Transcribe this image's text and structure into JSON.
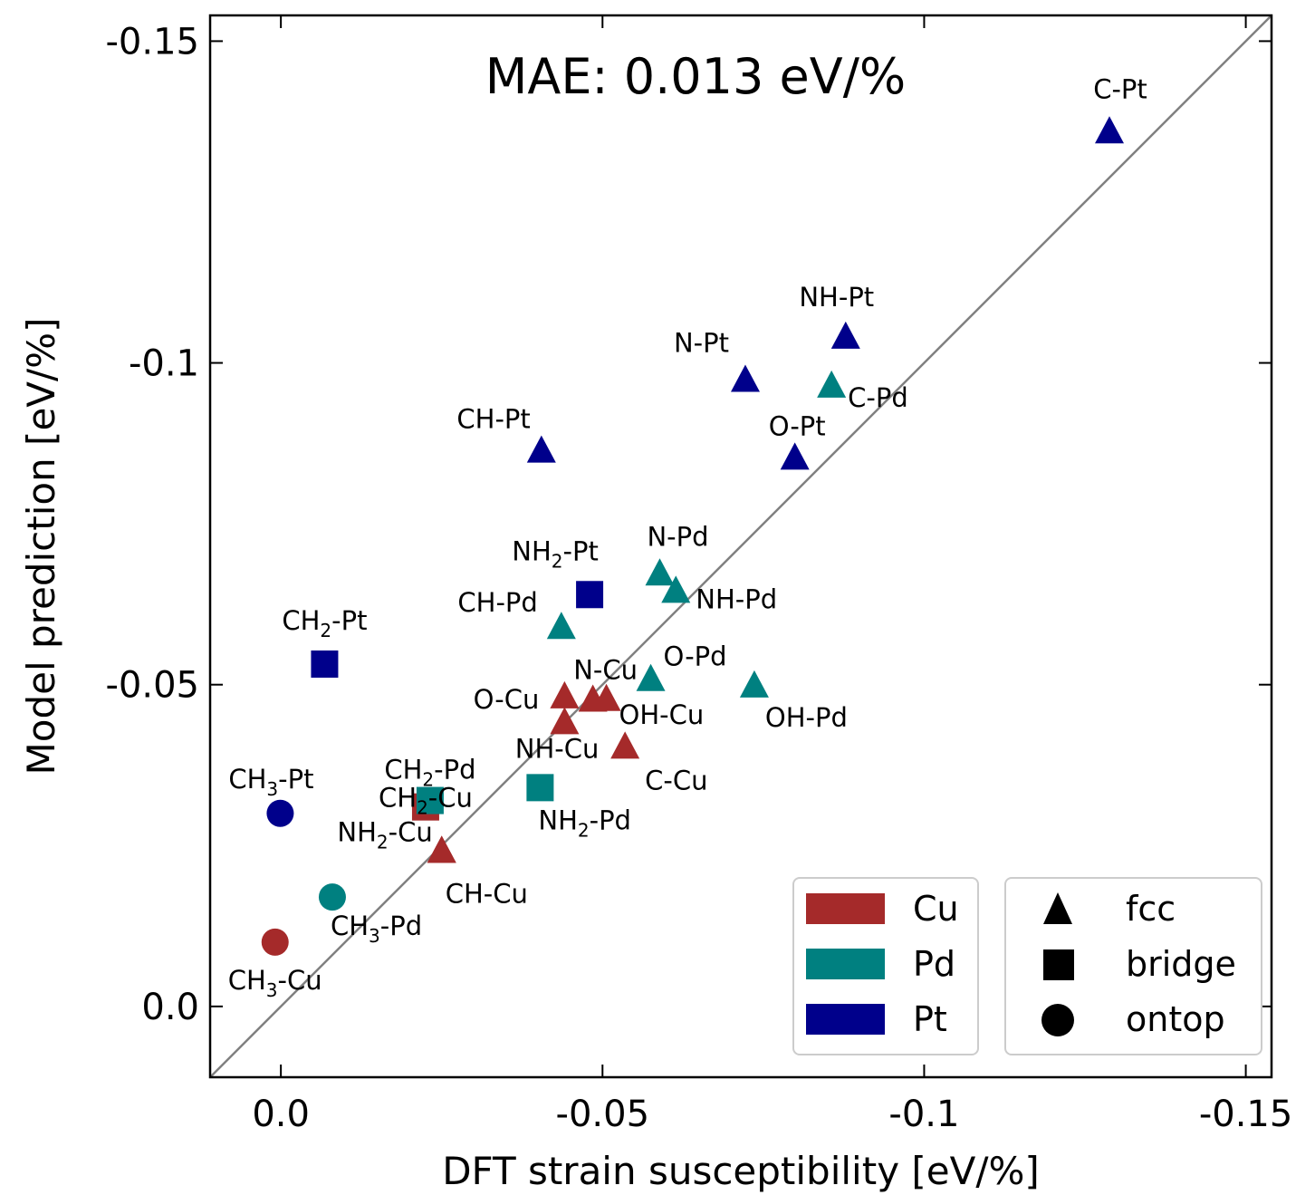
{
  "chart_data": {
    "type": "scatter",
    "xlabel": "DFT strain susceptibility [eV/%]",
    "ylabel": "Model prediction [eV/%]",
    "annotation": "MAE: 0.013 eV/%",
    "xlim": [
      0.011,
      -0.154
    ],
    "ylim": [
      0.011,
      -0.154
    ],
    "x_ticks": [
      {
        "value": 0.0,
        "label": "0.0"
      },
      {
        "value": -0.05,
        "label": "-0.05"
      },
      {
        "value": -0.1,
        "label": "-0.1"
      },
      {
        "value": -0.15,
        "label": "-0.15"
      }
    ],
    "y_ticks": [
      {
        "value": 0.0,
        "label": "0.0"
      },
      {
        "value": -0.05,
        "label": "-0.05"
      },
      {
        "value": -0.1,
        "label": "-0.1"
      },
      {
        "value": -0.15,
        "label": "-0.15"
      }
    ],
    "parity_line": true,
    "grid": false,
    "colors": {
      "Cu": "#a52a2a",
      "Pd": "#008080",
      "Pt": "#00008b",
      "parity": "#808080"
    },
    "legend_metals": [
      "Cu",
      "Pd",
      "Pt"
    ],
    "legend_sites": [
      {
        "name": "fcc",
        "marker": "triangle"
      },
      {
        "name": "bridge",
        "marker": "square"
      },
      {
        "name": "ontop",
        "marker": "circle"
      }
    ],
    "points": [
      {
        "ads": "C",
        "sub": "",
        "metal": "Pt",
        "site": "fcc",
        "x": -0.1288,
        "y": -0.1358,
        "text": "C-Pt",
        "anchor": "middle",
        "dx": 12,
        "dy": -38
      },
      {
        "ads": "NH",
        "sub": "",
        "metal": "Pt",
        "site": "fcc",
        "x": -0.0878,
        "y": -0.1039,
        "text": "NH-Pt",
        "anchor": "middle",
        "dx": -10,
        "dy": -35
      },
      {
        "ads": "N",
        "sub": "",
        "metal": "Pt",
        "site": "fcc",
        "x": -0.0722,
        "y": -0.0972,
        "text": "N-Pt",
        "anchor": "end",
        "dx": -18,
        "dy": -32
      },
      {
        "ads": "C",
        "sub": "",
        "metal": "Pd",
        "site": "fcc",
        "x": -0.0856,
        "y": -0.0963,
        "text": "C-Pd",
        "anchor": "start",
        "dx": 18,
        "dy": 22
      },
      {
        "ads": "O",
        "sub": "",
        "metal": "Pt",
        "site": "fcc",
        "x": -0.0799,
        "y": -0.0851,
        "text": "O-Pt",
        "anchor": "end",
        "dx": 34,
        "dy": -26
      },
      {
        "ads": "CH",
        "sub": "",
        "metal": "Pt",
        "site": "fcc",
        "x": -0.0405,
        "y": -0.0862,
        "text": "CH-Pt",
        "anchor": "end",
        "dx": -12,
        "dy": -26
      },
      {
        "ads": "N",
        "sub": "",
        "metal": "Pd",
        "site": "fcc",
        "x": -0.0589,
        "y": -0.0671,
        "text": "N-Pd",
        "anchor": "middle",
        "dx": 20,
        "dy": -32
      },
      {
        "ads": "NH",
        "sub": "",
        "metal": "Pd",
        "site": "fcc",
        "x": -0.0614,
        "y": -0.0644,
        "text": "NH-Pd",
        "anchor": "start",
        "dx": 22,
        "dy": 18
      },
      {
        "ads": "NH",
        "sub": "2",
        "metal": "Pt",
        "site": "bridge",
        "x": -0.048,
        "y": -0.064,
        "text": "NH-Pt",
        "anchor": "middle",
        "dx": -38,
        "dy": -38
      },
      {
        "ads": "CH",
        "sub": "",
        "metal": "Pd",
        "site": "fcc",
        "x": -0.0436,
        "y": -0.0588,
        "text": "CH-Pd",
        "anchor": "end",
        "dx": -26,
        "dy": -18
      },
      {
        "ads": "CH",
        "sub": "2",
        "metal": "Pt",
        "site": "bridge",
        "x": -0.0068,
        "y": -0.0532,
        "text": "CH-Pt",
        "anchor": "middle",
        "dx": 0,
        "dy": -38
      },
      {
        "ads": "O",
        "sub": "",
        "metal": "Pd",
        "site": "fcc",
        "x": -0.0575,
        "y": -0.0507,
        "text": "O-Pd",
        "anchor": "start",
        "dx": 14,
        "dy": -16
      },
      {
        "ads": "OH",
        "sub": "",
        "metal": "Pd",
        "site": "fcc",
        "x": -0.0736,
        "y": -0.0497,
        "text": "OH-Pd",
        "anchor": "start",
        "dx": 12,
        "dy": 44
      },
      {
        "ads": "N",
        "sub": "",
        "metal": "Cu",
        "site": "fcc",
        "x": -0.0485,
        "y": -0.0475,
        "text": "N-Cu",
        "anchor": "middle",
        "dx": 14,
        "dy": -24
      },
      {
        "ads": "O",
        "sub": "",
        "metal": "Cu",
        "site": "fcc",
        "x": -0.0441,
        "y": -0.048,
        "text": "O-Cu",
        "anchor": "end",
        "dx": -28,
        "dy": 12
      },
      {
        "ads": "OH",
        "sub": "",
        "metal": "Cu",
        "site": "fcc",
        "x": -0.0506,
        "y": -0.0476,
        "text": "OH-Cu",
        "anchor": "start",
        "dx": 14,
        "dy": 26
      },
      {
        "ads": "NH",
        "sub": "",
        "metal": "Cu",
        "site": "fcc",
        "x": -0.0441,
        "y": -0.044,
        "text": "NH-Cu",
        "anchor": "end",
        "dx": 38,
        "dy": 38
      },
      {
        "ads": "C",
        "sub": "",
        "metal": "Cu",
        "site": "fcc",
        "x": -0.0535,
        "y": -0.0402,
        "text": "C-Cu",
        "anchor": "start",
        "dx": 22,
        "dy": 46
      },
      {
        "ads": "NH",
        "sub": "2",
        "metal": "Pd",
        "site": "bridge",
        "x": -0.0403,
        "y": -0.034,
        "text": "NH-Pd",
        "anchor": "start",
        "dx": -2,
        "dy": 46
      },
      {
        "ads": "CH",
        "sub": "2",
        "metal": "Cu",
        "site": "bridge",
        "x": -0.0225,
        "y": -0.031,
        "text": "",
        "anchor": "middle",
        "dx": 0,
        "dy": 0
      },
      {
        "ads": "CH",
        "sub": "2",
        "metal": "Pd",
        "site": "bridge",
        "x": -0.0232,
        "y": -0.032,
        "text": "CH-Pd",
        "anchor": "middle",
        "dx": 0,
        "dy": -24
      },
      {
        "ads": "NH",
        "sub": "2",
        "metal": "Cu",
        "site": "fcc",
        "x": -0.025,
        "y": -0.024,
        "text": "NH-Cu",
        "anchor": "end",
        "dx": -10,
        "dy": -12
      },
      {
        "ads": "CH",
        "sub": "",
        "metal": "Cu",
        "site": "fcc",
        "x": -0.025,
        "y": -0.024,
        "text": "CH-Cu",
        "anchor": "start",
        "dx": 4,
        "dy": 56
      },
      {
        "ads": "CH",
        "sub": "3",
        "metal": "Pt",
        "site": "ontop",
        "x": 0.0001,
        "y": -0.03,
        "text": "CH-Pt",
        "anchor": "middle",
        "dx": -10,
        "dy": -28
      },
      {
        "ads": "CH",
        "sub": "3",
        "metal": "Pd",
        "site": "ontop",
        "x": -0.008,
        "y": -0.017,
        "text": "CH-Pd",
        "anchor": "start",
        "dx": -2,
        "dy": 42
      },
      {
        "ads": "CH",
        "sub": "3",
        "metal": "Cu",
        "site": "ontop",
        "x": 0.0009,
        "y": -0.01,
        "text": "CH-Cu",
        "anchor": "start",
        "dx": -52,
        "dy": 52
      }
    ]
  }
}
